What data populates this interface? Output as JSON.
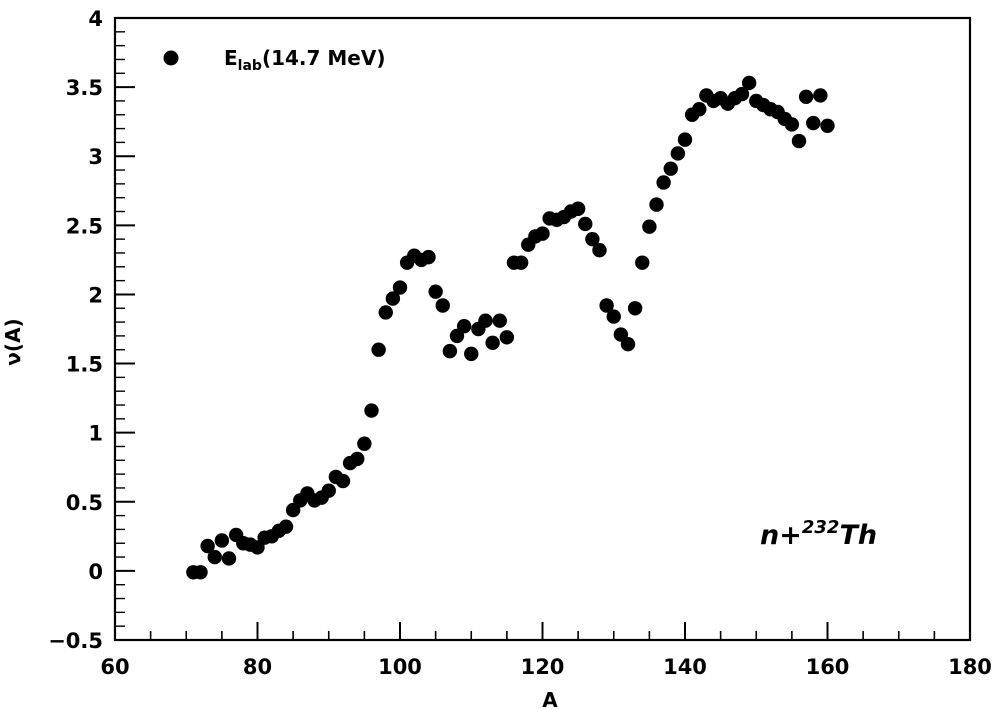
{
  "chart_data": {
    "type": "scatter",
    "xlabel": "A",
    "ylabel": "ν(A)",
    "xlim": [
      60,
      180
    ],
    "ylim": [
      -0.5,
      4
    ],
    "x_ticks": [
      "60",
      "80",
      "100",
      "120",
      "140",
      "160",
      "180"
    ],
    "y_ticks": [
      "−0.5",
      "0",
      "0.5",
      "1",
      "1.5",
      "2",
      "2.5",
      "3",
      "3.5",
      "4"
    ],
    "grid": false,
    "legend_position": "top-left",
    "legend": {
      "main": "E",
      "sub": "lab",
      "rest": "(14.7 MeV)"
    },
    "annotation": {
      "prefix": "n+",
      "sup": "232",
      "suffix": "Th"
    },
    "marker_color": "#000000",
    "series": [
      {
        "x": [
          71,
          72,
          73,
          74,
          75,
          76,
          77,
          78,
          79,
          80,
          81,
          82,
          83,
          84,
          85,
          86,
          87,
          88,
          89,
          90,
          91,
          92,
          93,
          94,
          95,
          96,
          97,
          98,
          99,
          100,
          101,
          102,
          103,
          104,
          105,
          106,
          107,
          108,
          109,
          110,
          111,
          112,
          113,
          114,
          115,
          116,
          117,
          118,
          119,
          120,
          121,
          122,
          123,
          124,
          125,
          126,
          127,
          128,
          129,
          130,
          131,
          132,
          133,
          134,
          135,
          136,
          137,
          138,
          139,
          140,
          141,
          142,
          143,
          144,
          145,
          146,
          147,
          148,
          149,
          150,
          151,
          152,
          153,
          154,
          155,
          156,
          157,
          158,
          159,
          160
        ],
        "y": [
          -0.01,
          -0.01,
          0.18,
          0.1,
          0.22,
          0.09,
          0.26,
          0.2,
          0.19,
          0.17,
          0.24,
          0.25,
          0.29,
          0.32,
          0.44,
          0.51,
          0.56,
          0.51,
          0.53,
          0.58,
          0.68,
          0.65,
          0.78,
          0.81,
          0.92,
          1.16,
          1.6,
          1.87,
          1.97,
          2.05,
          2.23,
          2.28,
          2.25,
          2.27,
          2.02,
          1.92,
          1.59,
          1.7,
          1.77,
          1.57,
          1.75,
          1.81,
          1.65,
          1.81,
          1.69,
          2.23,
          2.23,
          2.36,
          2.42,
          2.44,
          2.55,
          2.54,
          2.56,
          2.6,
          2.62,
          2.51,
          2.4,
          2.32,
          1.92,
          1.84,
          1.71,
          1.64,
          1.9,
          2.23,
          2.49,
          2.65,
          2.81,
          2.91,
          3.02,
          3.12,
          3.3,
          3.34,
          3.44,
          3.4,
          3.42,
          3.38,
          3.42,
          3.45,
          3.53,
          3.4,
          3.37,
          3.34,
          3.32,
          3.27,
          3.23,
          3.11,
          3.43,
          3.24,
          3.44,
          3.22
        ]
      }
    ]
  }
}
